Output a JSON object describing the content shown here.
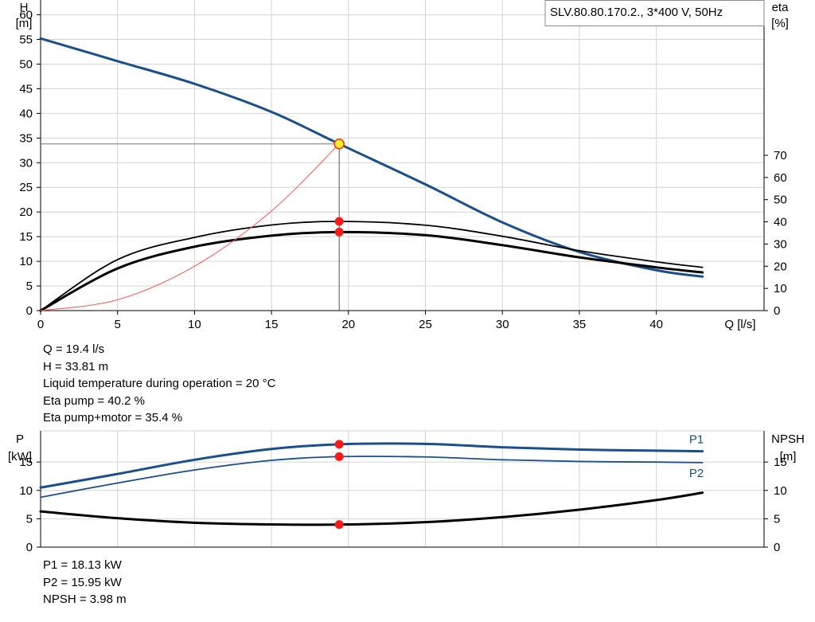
{
  "chart_data": [
    {
      "type": "line",
      "title": "SLV.80.80.170.2., 3*400 V, 50Hz",
      "xlabel": "Q [l/s]",
      "ylabel_left": [
        "H",
        "[m]"
      ],
      "ylabel_right": [
        "eta",
        "[%]"
      ],
      "xlim": [
        0,
        47
      ],
      "ylim_left": [
        0,
        63
      ],
      "ylim_right": [
        0,
        70
      ],
      "x_ticks": [
        "0",
        "5",
        "10",
        "15",
        "20",
        "25",
        "30",
        "35",
        "40"
      ],
      "y_ticks_left": [
        "0",
        "5",
        "10",
        "15",
        "20",
        "25",
        "30",
        "35",
        "40",
        "45",
        "50",
        "55",
        "60"
      ],
      "y_ticks_right": [
        "0",
        "10",
        "20",
        "30",
        "40",
        "50",
        "60",
        "70"
      ],
      "grid": true,
      "series": [
        {
          "key": "H",
          "axis": "left",
          "color": "#1a4f8a",
          "width": 3,
          "x": [
            0,
            5,
            10,
            15,
            19.4,
            25,
            30,
            35,
            40,
            43
          ],
          "y": [
            55.2,
            50.6,
            46,
            40.3,
            33.81,
            25.6,
            17.9,
            11.9,
            8.2,
            6.9
          ]
        },
        {
          "key": "eta_pump",
          "axis": "right",
          "color": "#000000",
          "width": 1.8,
          "x": [
            0,
            5,
            10,
            15,
            19.4,
            25,
            30,
            35,
            40,
            43
          ],
          "y": [
            0,
            23,
            33,
            38.6,
            40.2,
            38.5,
            33.5,
            27,
            22,
            19.5
          ]
        },
        {
          "key": "eta_total",
          "axis": "right",
          "color": "#000000",
          "width": 3,
          "x": [
            0,
            5,
            10,
            15,
            19.4,
            25,
            30,
            35,
            40,
            43
          ],
          "y": [
            0,
            19,
            28.8,
            33.8,
            35.4,
            34,
            29.5,
            24,
            19.5,
            17.2
          ]
        },
        {
          "key": "system",
          "axis": "left",
          "color": "#ff5555",
          "width": 1,
          "x": [
            0,
            5,
            10,
            15,
            19.4
          ],
          "y": [
            0,
            2.2,
            9,
            20.2,
            33.81
          ]
        }
      ],
      "operating_point": {
        "Q": 19.4,
        "H": 33.81,
        "eta_pump": 40.2,
        "eta_total": 35.4
      }
    },
    {
      "type": "line",
      "xlim": [
        0,
        47
      ],
      "ylim_left": [
        0,
        20.5
      ],
      "ylim_right": [
        0,
        20.5
      ],
      "ylabel_left": [
        "P",
        "[kW]"
      ],
      "ylabel_right": [
        "NPSH",
        "[m]"
      ],
      "y_ticks_left": [
        "0",
        "5",
        "10",
        "15"
      ],
      "y_ticks_right": [
        "0",
        "5",
        "10",
        "15"
      ],
      "grid": true,
      "series": [
        {
          "key": "P1",
          "name": "P1",
          "axis": "left",
          "color": "#1a4f8a",
          "width": 3,
          "x": [
            0,
            5,
            10,
            15,
            19.4,
            25,
            30,
            35,
            40,
            43
          ],
          "y": [
            10.5,
            12.9,
            15.4,
            17.3,
            18.13,
            18.2,
            17.6,
            17.2,
            17.0,
            16.9
          ]
        },
        {
          "key": "P2",
          "name": "P2",
          "axis": "left",
          "color": "#1a4f8a",
          "width": 1.8,
          "x": [
            0,
            5,
            10,
            15,
            19.4,
            25,
            30,
            35,
            40,
            43
          ],
          "y": [
            8.8,
            11.3,
            13.6,
            15.3,
            15.95,
            15.9,
            15.4,
            15.1,
            15.0,
            14.9
          ]
        },
        {
          "key": "NPSH",
          "axis": "right",
          "color": "#000000",
          "width": 3,
          "x": [
            0,
            5,
            10,
            15,
            19.4,
            25,
            30,
            35,
            40,
            43
          ],
          "y": [
            6.3,
            5.1,
            4.3,
            4.0,
            3.98,
            4.4,
            5.3,
            6.6,
            8.3,
            9.6
          ]
        }
      ],
      "operating_point": {
        "Q": 19.4,
        "P1": 18.13,
        "P2": 15.95,
        "NPSH": 3.98
      }
    }
  ],
  "info_top": [
    "Q = 19.4 l/s",
    "H = 33.81 m",
    "Liquid temperature during operation = 20 °C",
    "Eta pump = 40.2 %",
    "Eta pump+motor = 35.4 %"
  ],
  "info_bottom": [
    "P1 = 18.13 kW",
    "P2 = 15.95 kW",
    "NPSH = 3.98 m"
  ]
}
